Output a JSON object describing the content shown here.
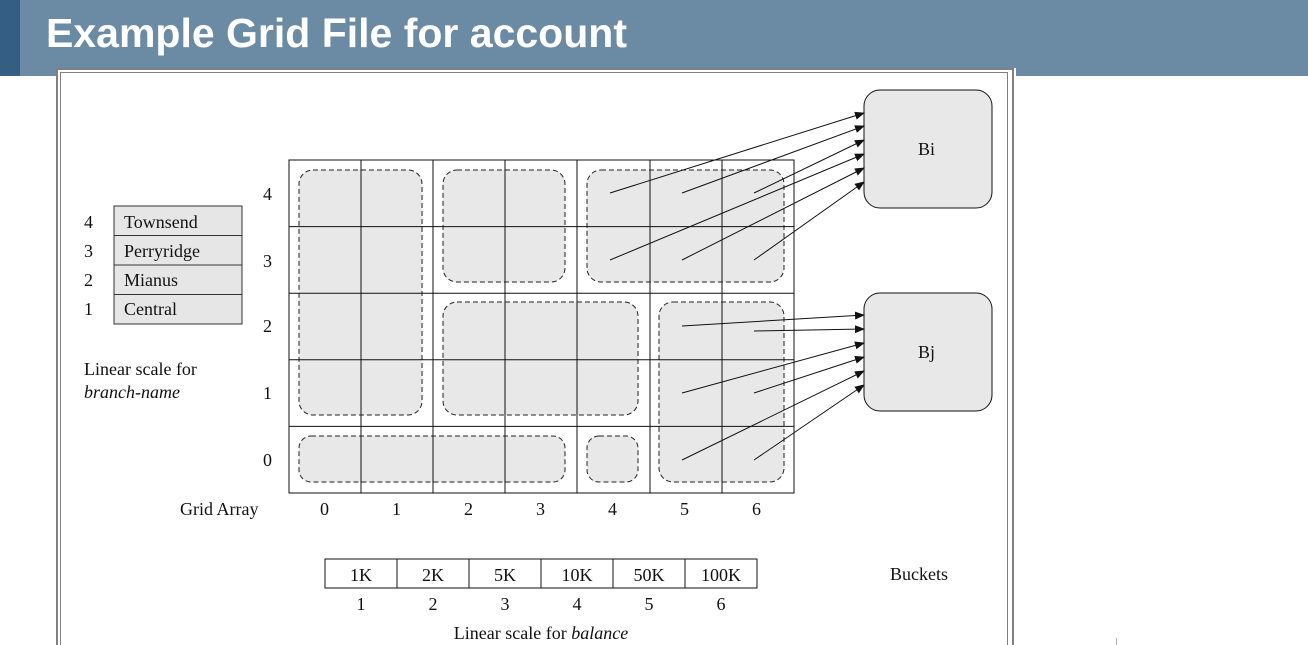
{
  "title": "Example Grid File for account",
  "branch_scale": {
    "entries": [
      {
        "index": "4",
        "name": "Townsend"
      },
      {
        "index": "3",
        "name": "Perryridge"
      },
      {
        "index": "2",
        "name": "Mianus"
      },
      {
        "index": "1",
        "name": "Central"
      }
    ],
    "caption_line1": "Linear scale for",
    "caption_line2": "branch-name"
  },
  "grid": {
    "label": "Grid Array",
    "row_labels": [
      "4",
      "3",
      "2",
      "1",
      "0"
    ],
    "col_labels": [
      "0",
      "1",
      "2",
      "3",
      "4",
      "5",
      "6"
    ]
  },
  "balance_scale": {
    "values": [
      "1K",
      "2K",
      "5K",
      "10K",
      "50K",
      "100K"
    ],
    "indices": [
      "1",
      "2",
      "3",
      "4",
      "5",
      "6"
    ],
    "caption_prefix": "Linear scale for ",
    "caption_term": "balance"
  },
  "buckets": {
    "label": "Buckets",
    "bucket_i": "Bi",
    "bucket_j": "Bj"
  },
  "colors": {
    "header": "#6b8aa3",
    "header_accent": "#355e84",
    "cell_fill": "#e8e8e8"
  }
}
